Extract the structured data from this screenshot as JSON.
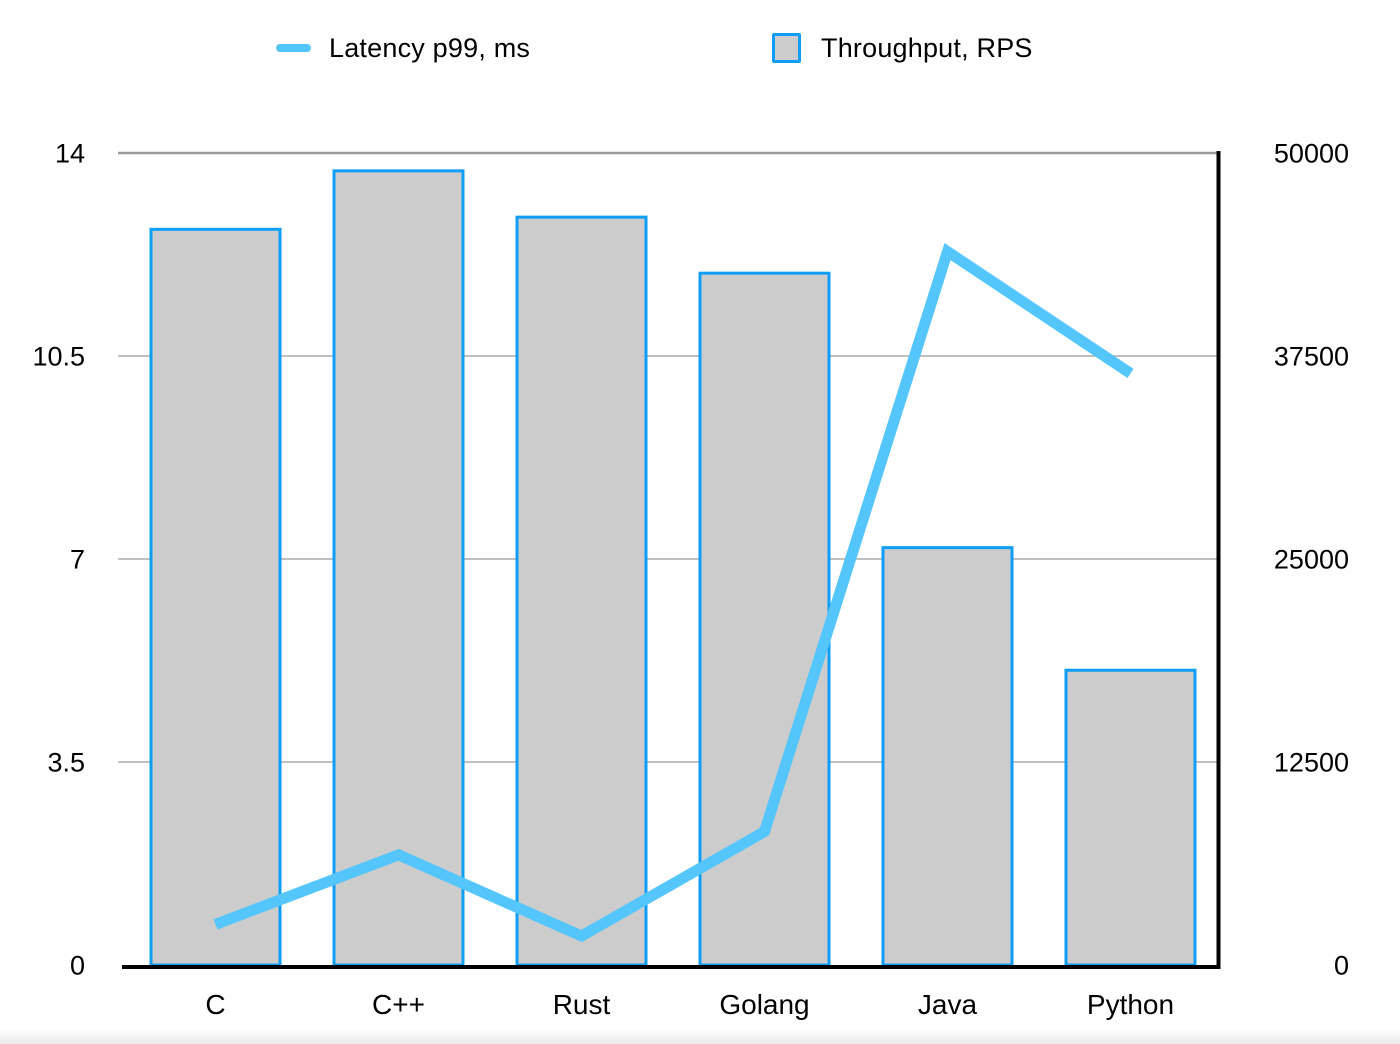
{
  "chart_data": {
    "type": "bar",
    "title": "",
    "categories": [
      "C",
      "C++",
      "Rust",
      "Golang",
      "Java",
      "Python"
    ],
    "series": [
      {
        "name": "Latency p99, ms",
        "type": "line",
        "axis": "left",
        "values": [
          0.7,
          1.9,
          0.5,
          2.3,
          12.3,
          10.2
        ],
        "color": "#55C6FB"
      },
      {
        "name": "Throughput, RPS",
        "type": "bar",
        "axis": "right",
        "values": [
          45300,
          48900,
          46050,
          42600,
          25700,
          18150
        ],
        "fill": "#CCCCCC",
        "border": "#0F9EF5"
      }
    ],
    "left_axis": {
      "min": 0,
      "max": 14,
      "ticks": [
        0,
        3.5,
        7,
        10.5,
        14
      ],
      "tick_labels": [
        "0",
        "3.5",
        "7",
        "10.5",
        "14"
      ]
    },
    "right_axis": {
      "min": 0,
      "max": 50000,
      "ticks": [
        0,
        12500,
        25000,
        37500,
        50000
      ],
      "tick_labels": [
        "0",
        "12500",
        "25000",
        "37500",
        "50000"
      ]
    },
    "grid": true,
    "legend_position": "top",
    "colors": {
      "gridline": "#ABABAB",
      "gridline_top": "#9B9B9B",
      "axis": "#000000",
      "text": "#000000",
      "background": "#FFFFFF"
    }
  }
}
